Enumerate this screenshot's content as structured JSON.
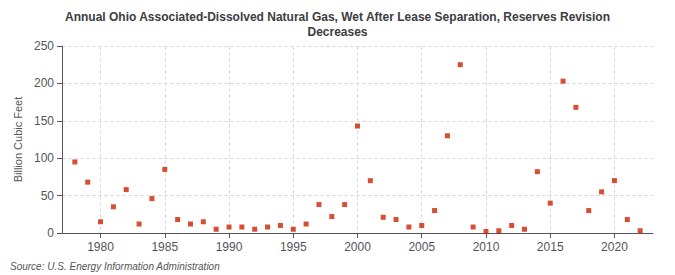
{
  "chart_data": {
    "type": "scatter",
    "title": "Annual Ohio Associated-Dissolved Natural Gas, Wet After Lease Separation, Reserves Revision\nDecreases",
    "ylabel": "Billion Cubic Feet",
    "source": "Source: U.S. Energy Information Administration",
    "color": "#cc2200",
    "marker": "square",
    "grid": true,
    "xlim": [
      1977,
      2023
    ],
    "xticks": [
      1980,
      1985,
      1990,
      1995,
      2000,
      2005,
      2010,
      2015,
      2020
    ],
    "ylim": [
      0,
      250
    ],
    "yticks": [
      0,
      50,
      100,
      150,
      200,
      250
    ],
    "x": [
      1978,
      1979,
      1980,
      1981,
      1982,
      1983,
      1984,
      1985,
      1986,
      1987,
      1988,
      1989,
      1990,
      1991,
      1992,
      1993,
      1994,
      1995,
      1996,
      1997,
      1998,
      1999,
      2000,
      2001,
      2002,
      2003,
      2004,
      2005,
      2006,
      2007,
      2008,
      2009,
      2010,
      2011,
      2012,
      2013,
      2014,
      2015,
      2016,
      2017,
      2018,
      2019,
      2020,
      2021,
      2022
    ],
    "values": [
      95,
      68,
      15,
      35,
      58,
      12,
      46,
      85,
      18,
      12,
      15,
      5,
      8,
      8,
      5,
      8,
      10,
      5,
      12,
      38,
      22,
      38,
      143,
      70,
      21,
      18,
      8,
      10,
      30,
      130,
      225,
      8,
      2,
      3,
      10,
      5,
      82,
      40,
      203,
      168,
      30,
      55,
      70,
      18,
      3
    ]
  }
}
